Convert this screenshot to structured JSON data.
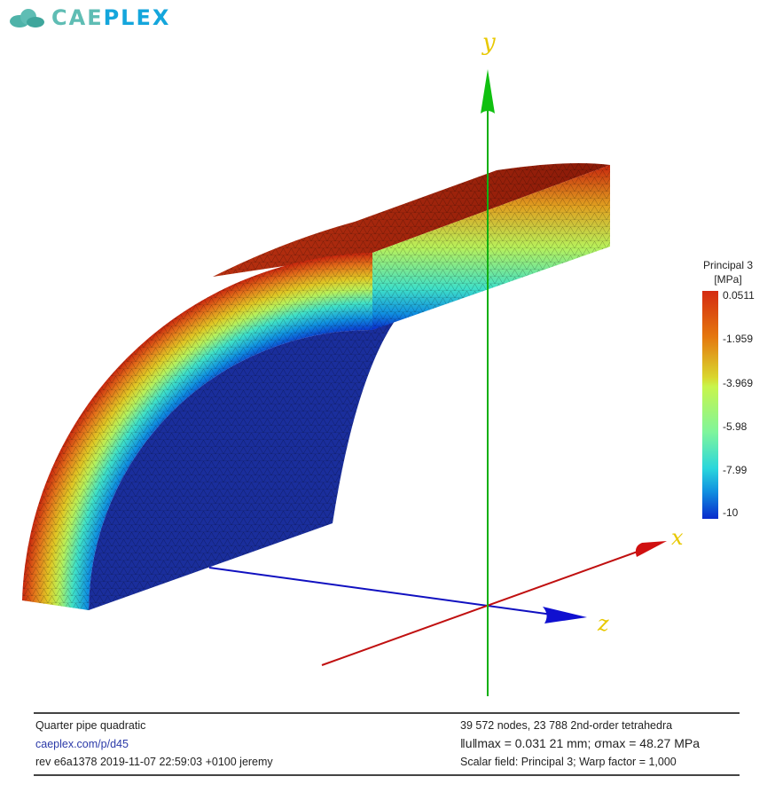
{
  "logo": {
    "text_a": "CAE",
    "text_b": "PLEX"
  },
  "viewport": {
    "axes": {
      "x_label": "x",
      "y_label": "y",
      "z_label": "z",
      "x_color": "#d01010",
      "y_color": "#10c010",
      "z_color": "#1010d0"
    },
    "colorbar": {
      "title": "Principal 3",
      "unit": "[MPa]",
      "labels": [
        "0.0511",
        "-1.959",
        "-3.969",
        "-5.98",
        "-7.99",
        "-10"
      ]
    }
  },
  "footer": {
    "title": "Quarter pipe quadratic",
    "link": "caeplex.com/p/d45",
    "revision": "rev e6a1378 2019-11-07 22:59:03 +0100 jeremy",
    "mesh_info": "39 572 nodes, 23 788 2nd-order tetrahedra",
    "max_values": "‖u‖max = 0.031 21 mm; σmax = 48.27 MPa",
    "scalar_field": "Scalar field:  Principal 3; Warp factor = 1,000"
  }
}
